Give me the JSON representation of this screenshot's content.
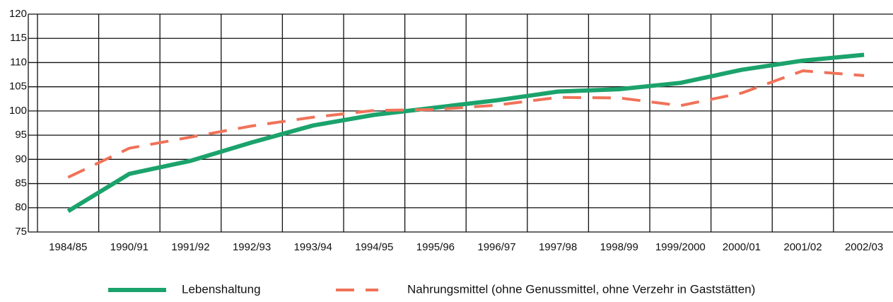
{
  "chart_data": {
    "type": "line",
    "categories": [
      "1984/85",
      "1990/91",
      "1991/92",
      "1992/93",
      "1993/94",
      "1994/95",
      "1995/96",
      "1996/97",
      "1997/98",
      "1998/99",
      "1999/2000",
      "2000/01",
      "2001/02",
      "2002/03"
    ],
    "series": [
      {
        "name": "Lebenshaltung",
        "color": "#1ba36c",
        "dash": false,
        "values": [
          79.3,
          87,
          89.7,
          93.5,
          97,
          99.2,
          100.7,
          102.2,
          104,
          104.5,
          105.8,
          108.5,
          110.4,
          111.6
        ]
      },
      {
        "name": "Nahrungsmittel (ohne Genussmittel, ohne Verzehr in Gaststätten)",
        "color": "#f07258",
        "dash": true,
        "values": [
          86.3,
          92.3,
          94.6,
          96.9,
          98.7,
          100.1,
          100.3,
          101.2,
          102.8,
          102.7,
          101.1,
          103.7,
          108.3,
          107.3
        ]
      }
    ],
    "ylim": [
      75,
      120
    ],
    "yticks": [
      75,
      80,
      85,
      90,
      95,
      100,
      105,
      110,
      115,
      120
    ],
    "grid": true
  }
}
